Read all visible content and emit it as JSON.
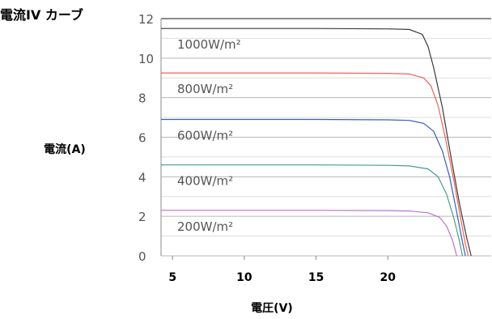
{
  "chart_data": {
    "type": "line",
    "title": "電流IV カーブ",
    "xlabel": "電圧(V)",
    "ylabel": "電流(A)",
    "xlim": [
      4.2,
      27.2
    ],
    "ylim": [
      0,
      12
    ],
    "x_ticks": [
      5,
      10,
      15,
      20
    ],
    "y_ticks": [
      0,
      2,
      4,
      6,
      8,
      10,
      12
    ],
    "grid": "horizontal",
    "legend": "inline labels",
    "series": [
      {
        "name": "1000W/m²",
        "color": "#3a3a3a",
        "isc": 11.5,
        "voc": 25.8,
        "points": [
          [
            4.2,
            11.5
          ],
          [
            10,
            11.5
          ],
          [
            15,
            11.5
          ],
          [
            20,
            11.48
          ],
          [
            21.5,
            11.45
          ],
          [
            22.4,
            11.2
          ],
          [
            22.8,
            10.6
          ],
          [
            23.2,
            9.5
          ],
          [
            23.8,
            7.5
          ],
          [
            24.4,
            5.0
          ],
          [
            25.0,
            2.6
          ],
          [
            25.5,
            0.9
          ],
          [
            25.8,
            0
          ]
        ]
      },
      {
        "name": "800W/m²",
        "color": "#f0625a",
        "isc": 9.25,
        "voc": 25.6,
        "points": [
          [
            4.2,
            9.25
          ],
          [
            10,
            9.25
          ],
          [
            15,
            9.25
          ],
          [
            20,
            9.23
          ],
          [
            21.5,
            9.2
          ],
          [
            22.5,
            9.0
          ],
          [
            23.0,
            8.6
          ],
          [
            23.5,
            7.6
          ],
          [
            24.0,
            6.0
          ],
          [
            24.6,
            3.8
          ],
          [
            25.1,
            1.8
          ],
          [
            25.4,
            0.6
          ],
          [
            25.6,
            0
          ]
        ]
      },
      {
        "name": "600W/m²",
        "color": "#3560b3",
        "isc": 6.9,
        "voc": 25.4,
        "points": [
          [
            4.2,
            6.9
          ],
          [
            10,
            6.9
          ],
          [
            15,
            6.9
          ],
          [
            20,
            6.88
          ],
          [
            21.5,
            6.85
          ],
          [
            22.5,
            6.7
          ],
          [
            23.2,
            6.3
          ],
          [
            23.8,
            5.3
          ],
          [
            24.3,
            4.0
          ],
          [
            24.8,
            2.2
          ],
          [
            25.2,
            0.7
          ],
          [
            25.4,
            0
          ]
        ]
      },
      {
        "name": "400W/m²",
        "color": "#4a9a8e",
        "isc": 4.6,
        "voc": 25.2,
        "points": [
          [
            4.2,
            4.6
          ],
          [
            10,
            4.6
          ],
          [
            15,
            4.6
          ],
          [
            20,
            4.58
          ],
          [
            21.5,
            4.55
          ],
          [
            22.8,
            4.4
          ],
          [
            23.5,
            4.0
          ],
          [
            24.1,
            3.1
          ],
          [
            24.6,
            1.9
          ],
          [
            25.0,
            0.7
          ],
          [
            25.2,
            0
          ]
        ]
      },
      {
        "name": "200W/m²",
        "color": "#b974cc",
        "isc": 2.3,
        "voc": 24.8,
        "points": [
          [
            4.2,
            2.3
          ],
          [
            10,
            2.3
          ],
          [
            15,
            2.3
          ],
          [
            20,
            2.29
          ],
          [
            21.5,
            2.27
          ],
          [
            22.8,
            2.18
          ],
          [
            23.6,
            1.95
          ],
          [
            24.1,
            1.5
          ],
          [
            24.5,
            0.8
          ],
          [
            24.8,
            0
          ]
        ]
      }
    ]
  }
}
